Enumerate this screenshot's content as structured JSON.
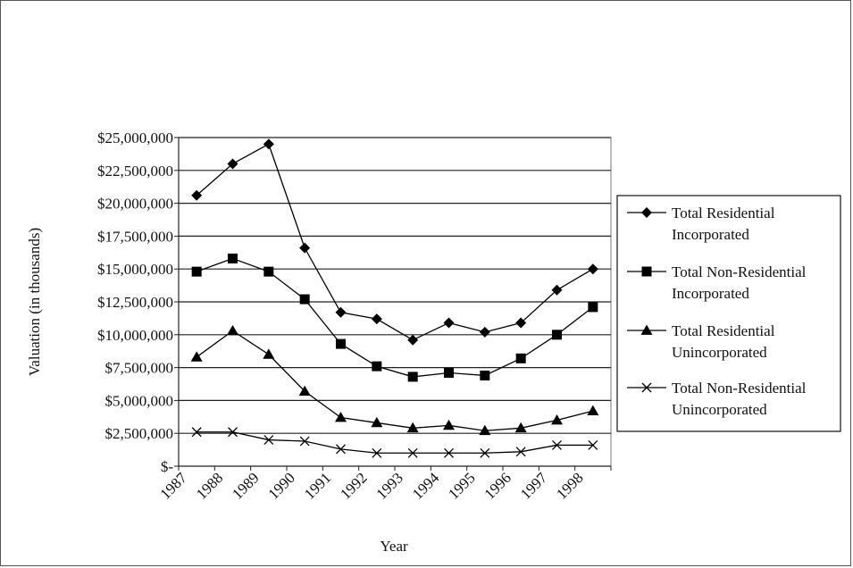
{
  "chart_data": {
    "type": "line",
    "title": "",
    "xlabel": "Year",
    "ylabel": "Valuation (in thousands)",
    "ylim": [
      0,
      25000000
    ],
    "yticks": [
      "$-",
      "$2,500,000",
      "$5,000,000",
      "$7,500,000",
      "$10,000,000",
      "$12,500,000",
      "$15,000,000",
      "$17,500,000",
      "$20,000,000",
      "$22,500,000",
      "$25,000,000"
    ],
    "categories": [
      "1987",
      "1988",
      "1989",
      "1990",
      "1991",
      "1992",
      "1993",
      "1994",
      "1995",
      "1996",
      "1997",
      "1998"
    ],
    "grid": true,
    "legend_position": "right",
    "series": [
      {
        "name": "Total Residential Incorporated",
        "name_lines": [
          "Total Residential",
          "Incorporated"
        ],
        "marker": "diamond",
        "values": [
          20600000,
          23000000,
          24500000,
          16600000,
          11700000,
          11200000,
          9600000,
          10900000,
          10200000,
          10900000,
          13400000,
          15000000
        ]
      },
      {
        "name": "Total Non-Residential Incorporated",
        "name_lines": [
          "Total Non-Residential",
          "Incorporated"
        ],
        "marker": "square",
        "values": [
          14800000,
          15800000,
          14800000,
          12700000,
          9300000,
          7600000,
          6800000,
          7100000,
          6900000,
          8200000,
          10000000,
          12100000
        ]
      },
      {
        "name": "Total Residential Unincorporated",
        "name_lines": [
          "Total Residential",
          "Unincorporated"
        ],
        "marker": "triangle",
        "values": [
          8300000,
          10300000,
          8500000,
          5700000,
          3700000,
          3300000,
          2900000,
          3100000,
          2700000,
          2900000,
          3500000,
          4200000
        ]
      },
      {
        "name": "Total Non-Residential Unincorporated",
        "name_lines": [
          "Total Non-Residential",
          "Unincorporated"
        ],
        "marker": "x",
        "values": [
          2600000,
          2600000,
          2000000,
          1900000,
          1300000,
          1000000,
          1000000,
          1000000,
          1000000,
          1100000,
          1600000,
          1600000
        ]
      }
    ]
  }
}
